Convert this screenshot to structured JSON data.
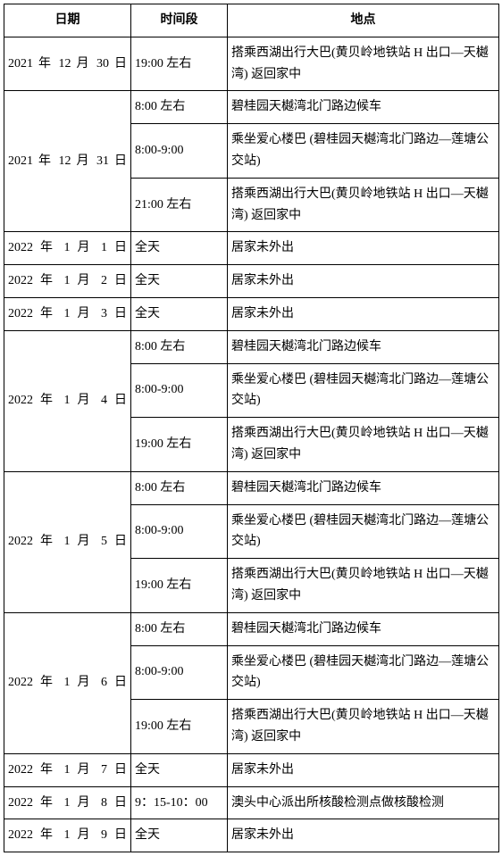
{
  "headers": [
    "日期",
    "时间段",
    "地点"
  ],
  "rows": [
    {
      "date": "2021 年 12 月 30 日",
      "slots": [
        {
          "time": "19:00 左右",
          "loc": "搭乘西湖出行大巴(黄贝岭地铁站 H 出口—天樾湾) 返回家中"
        }
      ]
    },
    {
      "date": "2021 年 12 月 31 日",
      "slots": [
        {
          "time": "8:00 左右",
          "loc": "碧桂园天樾湾北门路边候车"
        },
        {
          "time": "8:00-9:00",
          "loc": "乘坐爱心楼巴 (碧桂园天樾湾北门路边—莲塘公交站)"
        },
        {
          "time": "21:00 左右",
          "loc": "搭乘西湖出行大巴(黄贝岭地铁站 H 出口—天樾湾) 返回家中"
        }
      ]
    },
    {
      "date": "2022 年 1 月 1 日",
      "slots": [
        {
          "time": "全天",
          "loc": "居家未外出"
        }
      ]
    },
    {
      "date": "2022 年 1 月 2 日",
      "slots": [
        {
          "time": "全天",
          "loc": "居家未外出"
        }
      ]
    },
    {
      "date": "2022 年 1 月 3 日",
      "slots": [
        {
          "time": "全天",
          "loc": "居家未外出"
        }
      ]
    },
    {
      "date": "2022 年 1 月 4 日",
      "slots": [
        {
          "time": "8:00 左右",
          "loc": "碧桂园天樾湾北门路边候车"
        },
        {
          "time": "8:00-9:00",
          "loc": "乘坐爱心楼巴 (碧桂园天樾湾北门路边—莲塘公交站)"
        },
        {
          "time": "19:00 左右",
          "loc": "搭乘西湖出行大巴(黄贝岭地铁站 H 出口—天樾湾) 返回家中"
        }
      ]
    },
    {
      "date": "2022 年 1 月 5 日",
      "slots": [
        {
          "time": "8:00 左右",
          "loc": "碧桂园天樾湾北门路边候车"
        },
        {
          "time": "8:00-9:00",
          "loc": "乘坐爱心楼巴 (碧桂园天樾湾北门路边—莲塘公交站)"
        },
        {
          "time": "19:00 左右",
          "loc": "搭乘西湖出行大巴(黄贝岭地铁站 H 出口—天樾湾) 返回家中"
        }
      ]
    },
    {
      "date": "2022 年 1 月 6 日",
      "slots": [
        {
          "time": "8:00 左右",
          "loc": "碧桂园天樾湾北门路边候车"
        },
        {
          "time": "8:00-9:00",
          "loc": "乘坐爱心楼巴 (碧桂园天樾湾北门路边—莲塘公交站)"
        },
        {
          "time": "19:00 左右",
          "loc": "搭乘西湖出行大巴(黄贝岭地铁站 H 出口—天樾湾) 返回家中"
        }
      ]
    },
    {
      "date": "2022 年 1 月 7 日",
      "slots": [
        {
          "time": "全天",
          "loc": "居家未外出"
        }
      ]
    },
    {
      "date": "2022 年 1 月 8 日",
      "slots": [
        {
          "time": "9：15-10：00",
          "loc": "澳头中心派出所核酸检测点做核酸检测"
        }
      ]
    },
    {
      "date": "2022 年 1 月 9 日",
      "slots": [
        {
          "time": "全天",
          "loc": "居家未外出"
        }
      ]
    }
  ]
}
